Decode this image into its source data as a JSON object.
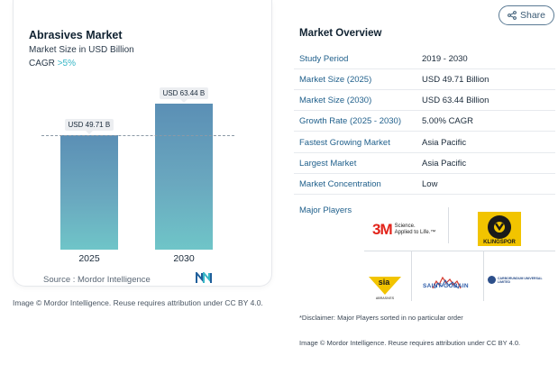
{
  "chart": {
    "title": "Abrasives Market",
    "subtitle": "Market Size in USD Billion",
    "cagr_label": "CAGR",
    "cagr_value": ">5%",
    "source": "Source :  Mordor Intelligence",
    "credit": "Image © Mordor Intelligence. Reuse requires attribution under CC BY 4.0."
  },
  "chart_data": {
    "type": "bar",
    "title": "Abrasives Market",
    "subtitle": "Market Size in USD Billion",
    "categories": [
      "2025",
      "2030"
    ],
    "values": [
      49.71,
      63.44
    ],
    "data_labels": [
      "USD 49.71 B",
      "USD 63.44 B"
    ],
    "ylim": [
      0,
      70
    ],
    "xlabel": "",
    "ylabel": ""
  },
  "share": {
    "label": "Share"
  },
  "overview": {
    "title": "Market Overview",
    "rows": [
      {
        "key": "Study Period",
        "value": "2019 - 2030"
      },
      {
        "key": "Market Size (2025)",
        "value": "USD 49.71 Billion"
      },
      {
        "key": "Market Size (2030)",
        "value": "USD 63.44 Billion"
      },
      {
        "key": "Growth Rate (2025 - 2030)",
        "value": "5.00% CAGR"
      },
      {
        "key": "Fastest Growing Market",
        "value": "Asia Pacific"
      },
      {
        "key": "Largest Market",
        "value": "Asia Pacific"
      },
      {
        "key": "Market Concentration",
        "value": "Low"
      }
    ],
    "players_label": "Major Players",
    "players": {
      "p1_mark": "3M",
      "p1_tagline_1": "Science.",
      "p1_tagline_2": "Applied to Life.™",
      "p2_name": "KLINGSPOR",
      "p3_name": "sia",
      "p3_tagline": "ABRASIVES",
      "p4_name": "SAINT-GOBAIN",
      "p5_name": "CARBORUNDUM UNIVERSAL LIMITED"
    },
    "disclaimer": "*Disclaimer: Major Players sorted in no particular order",
    "credit": "Image © Mordor Intelligence. Reuse requires attribution under CC BY 4.0."
  }
}
